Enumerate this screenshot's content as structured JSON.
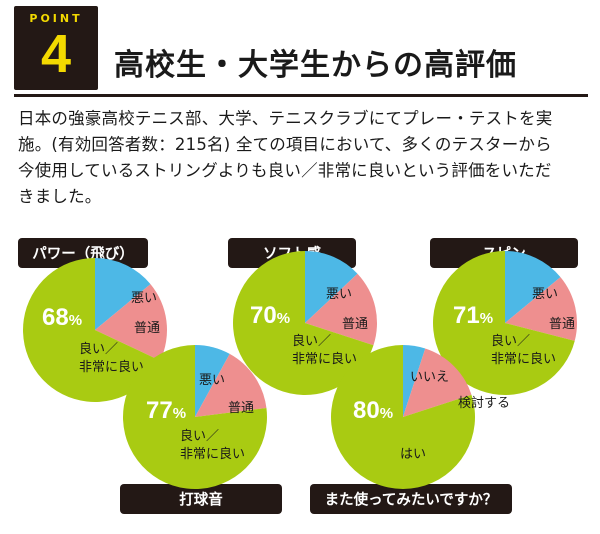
{
  "header": {
    "point_label": "POINT",
    "point_number": "4",
    "title": "高校生・大学生からの高評価"
  },
  "intro": {
    "lines": [
      "日本の強豪高校テニス部、大学、テニスクラブにてプレー・テストを実",
      "施。(有効回答者数：215名) 全ての項目において、多くのテスターから",
      "今使用しているストリングよりも良い／非常に良いという評価をいただ",
      "きました。"
    ]
  },
  "colors": {
    "good": "#a9cb12",
    "normal": "#ee8f8f",
    "bad": "#4db8e6",
    "tag": "#231815"
  },
  "chart_data": [
    {
      "type": "pie",
      "title": "パワー（飛び）",
      "headline_value": "68",
      "headline_unit": "%",
      "slices": [
        {
          "label": "悪い",
          "value": 14
        },
        {
          "label": "普通",
          "value": 18
        },
        {
          "label": "良い／非常に良い",
          "value": 68
        }
      ]
    },
    {
      "type": "pie",
      "title": "ソフト感",
      "headline_value": "70",
      "headline_unit": "%",
      "slices": [
        {
          "label": "悪い",
          "value": 13
        },
        {
          "label": "普通",
          "value": 17
        },
        {
          "label": "良い／非常に良い",
          "value": 70
        }
      ]
    },
    {
      "type": "pie",
      "title": "スピン",
      "headline_value": "71",
      "headline_unit": "%",
      "slices": [
        {
          "label": "悪い",
          "value": 14
        },
        {
          "label": "普通",
          "value": 15
        },
        {
          "label": "良い／非常に良い",
          "value": 71
        }
      ]
    },
    {
      "type": "pie",
      "title": "打球音",
      "headline_value": "77",
      "headline_unit": "%",
      "slices": [
        {
          "label": "悪い",
          "value": 8
        },
        {
          "label": "普通",
          "value": 15
        },
        {
          "label": "良い／非常に良い",
          "value": 77
        }
      ]
    },
    {
      "type": "pie",
      "title": "また使ってみたいですか？",
      "headline_value": "80",
      "headline_unit": "%",
      "slices": [
        {
          "label": "いいえ",
          "value": 5
        },
        {
          "label": "検討する",
          "value": 15
        },
        {
          "label": "はい",
          "value": 80
        }
      ]
    }
  ]
}
